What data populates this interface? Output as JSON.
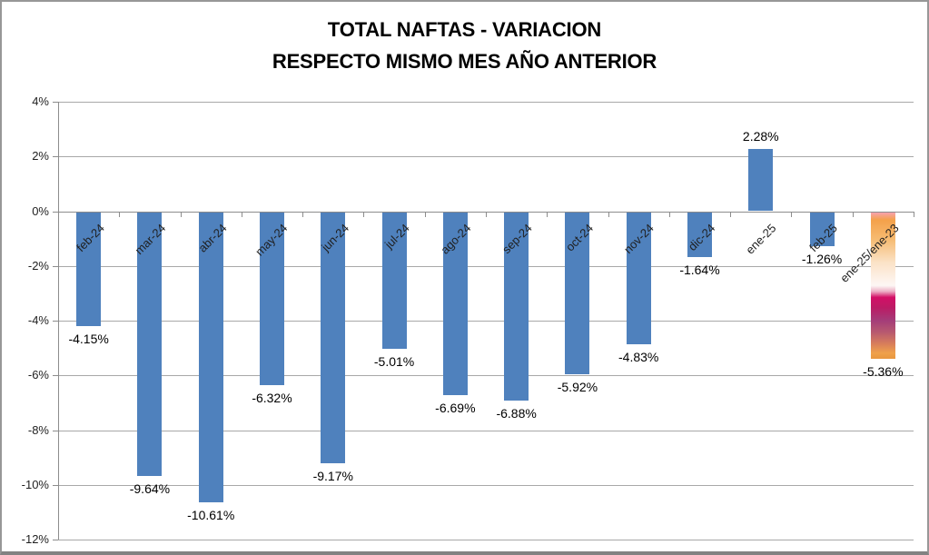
{
  "title": {
    "line1": "TOTAL NAFTAS - VARIACION",
    "line2": "RESPECTO MISMO MES AÑO ANTERIOR"
  },
  "chart_data": {
    "type": "bar",
    "categories": [
      "feb-24",
      "mar-24",
      "abr-24",
      "may-24",
      "jun-24",
      "jul-24",
      "ago-24",
      "sep-24",
      "oct-24",
      "nov-24",
      "dic-24",
      "ene-25",
      "feb-25",
      "ene-25/ene-23"
    ],
    "values": [
      -4.15,
      -9.64,
      -10.61,
      -6.32,
      -9.17,
      -5.01,
      -6.69,
      -6.88,
      -5.92,
      -4.83,
      -1.64,
      2.28,
      -1.26,
      -5.36
    ],
    "value_labels": [
      "-4.15%",
      "-9.64%",
      "-10.61%",
      "-6.32%",
      "-9.17%",
      "-5.01%",
      "-6.69%",
      "-6.88%",
      "-5.92%",
      "-4.83%",
      "-1.64%",
      "2.28%",
      "-1.26%",
      "-5.36%"
    ],
    "y_axis": {
      "min": -12,
      "max": 4,
      "step": 2,
      "tick_labels": [
        "4%",
        "2%",
        "0%",
        "-2%",
        "-4%",
        "-6%",
        "-8%",
        "-10%",
        "-12%"
      ]
    },
    "grid": true,
    "legend": "none",
    "colors": {
      "bar": "#4F81BD",
      "grid": "#a8a8a8",
      "axis": "#8c8c8c",
      "text": "#1f1f1f"
    },
    "special_bar": {
      "category": "ene-25/ene-23",
      "index": 13,
      "gradient_stops": [
        "#f7a2ae 0%",
        "#f4a14a 5%",
        "#f6ba70 18%",
        "#fbe2c6 34%",
        "#fdf2ea 46%",
        "#fdf6f4 50%",
        "#ecadc4 54%",
        "#d30f66 58%",
        "#bb1b65 65%",
        "#a43d79 74%",
        "#b85a6f 82%",
        "#d97f5a 90%",
        "#efa14b 96%",
        "#e9973e 100%"
      ]
    }
  }
}
